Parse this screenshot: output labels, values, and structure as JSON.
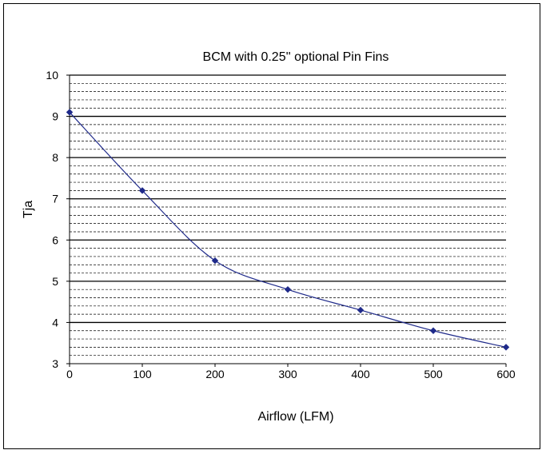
{
  "chart_data": {
    "type": "line",
    "title": "BCM with 0.25'' optional Pin Fins",
    "xlabel": "Airflow (LFM)",
    "ylabel": "Tja",
    "x": [
      0,
      100,
      200,
      300,
      400,
      500,
      600
    ],
    "series": [
      {
        "values": [
          9.1,
          7.2,
          5.5,
          4.8,
          4.3,
          3.8,
          3.4
        ]
      }
    ],
    "xlim": [
      0,
      600
    ],
    "ylim": [
      3,
      10
    ],
    "xticks": [
      0,
      100,
      200,
      300,
      400,
      500,
      600
    ],
    "yticks": [
      3,
      4,
      5,
      6,
      7,
      8,
      9,
      10
    ],
    "grid": "major solid, minor dashed",
    "line_color": "#1f2a8a",
    "marker_color": "#1f2a8a"
  }
}
